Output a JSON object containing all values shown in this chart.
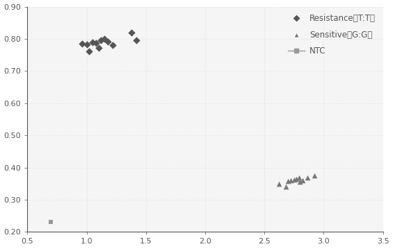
{
  "resistance_x": [
    0.96,
    1.0,
    1.02,
    1.05,
    1.08,
    1.1,
    1.12,
    1.15,
    1.18,
    1.22,
    1.38,
    1.42
  ],
  "resistance_y": [
    0.784,
    0.782,
    0.762,
    0.79,
    0.788,
    0.772,
    0.796,
    0.8,
    0.792,
    0.78,
    0.82,
    0.796
  ],
  "sensitive_x": [
    2.62,
    2.68,
    2.7,
    2.72,
    2.75,
    2.77,
    2.79,
    2.8,
    2.82,
    2.86,
    2.92
  ],
  "sensitive_y": [
    0.35,
    0.34,
    0.358,
    0.36,
    0.362,
    0.365,
    0.368,
    0.355,
    0.36,
    0.37,
    0.375
  ],
  "ntc_x": [
    0.7
  ],
  "ntc_y": [
    0.232
  ],
  "resistance_color": "#555555",
  "sensitive_color": "#777777",
  "ntc_color": "#999999",
  "xlim": [
    0.5,
    3.5
  ],
  "ylim": [
    0.2,
    0.9
  ],
  "xticks": [
    0.5,
    1.0,
    1.5,
    2.0,
    2.5,
    3.0,
    3.5
  ],
  "yticks": [
    0.2,
    0.3,
    0.4,
    0.5,
    0.6,
    0.7,
    0.8,
    0.9
  ],
  "ytick_labels": [
    "0.20",
    "0.30",
    "0.40",
    "0.50",
    "0.60",
    "0.70",
    "0.80",
    "0.90"
  ],
  "xtick_labels": [
    "0.5",
    "1.0",
    "1.5",
    "2.0",
    "2.5",
    "3.0",
    "3.5"
  ],
  "legend_resistance": "Resistance（T:T）",
  "legend_sensitive": "Sensitive（G:G）",
  "legend_ntc": "NTC",
  "bg_color": "#f5f5f5",
  "spine_color": "#555555",
  "grid_color": "#e0e0e0"
}
